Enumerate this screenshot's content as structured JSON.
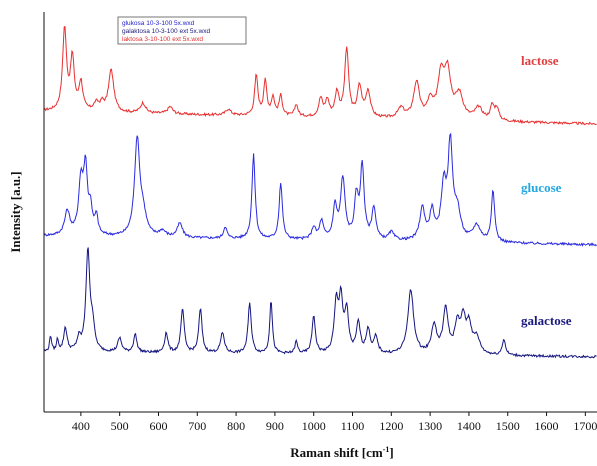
{
  "chart_data": {
    "type": "line",
    "xlabel": "Raman shift [cm",
    "xlabel_sup": "-1",
    "xlabel_close": "]",
    "ylabel": "Intensity [a.u.]",
    "xlim": [
      305,
      1730
    ],
    "ylim": [
      0,
      1
    ],
    "grid": false,
    "legend_position": "top-left",
    "x_ticks": [
      400,
      500,
      600,
      700,
      800,
      900,
      1000,
      1100,
      1200,
      1300,
      1400,
      1500,
      1600,
      1700
    ],
    "legend": [
      {
        "text": "glukosa 10-3-100 5x.wxd",
        "color": "#2222cc"
      },
      {
        "text": "galaktosa 10-3-100 ext 5x.wxd",
        "color": "#1a1a7a"
      },
      {
        "text": "laktosa 3-10-100 ext 5x.wxd",
        "color": "#e03030"
      }
    ],
    "series": [
      {
        "name": "lactose",
        "label_color": "#e04040",
        "color": "#e83030",
        "baseline": 0.752,
        "baseline_end": 0.72,
        "peaks": [
          [
            358,
            0.205,
            6
          ],
          [
            378,
            0.13,
            6
          ],
          [
            400,
            0.07,
            6
          ],
          [
            440,
            0.02,
            8
          ],
          [
            455,
            0.018,
            6
          ],
          [
            478,
            0.105,
            8
          ],
          [
            560,
            0.025,
            8
          ],
          [
            630,
            0.018,
            8
          ],
          [
            780,
            0.015,
            8
          ],
          [
            852,
            0.1,
            5
          ],
          [
            875,
            0.085,
            5
          ],
          [
            895,
            0.045,
            5
          ],
          [
            915,
            0.05,
            5
          ],
          [
            955,
            0.03,
            5
          ],
          [
            1018,
            0.045,
            6
          ],
          [
            1035,
            0.04,
            6
          ],
          [
            1060,
            0.06,
            6
          ],
          [
            1085,
            0.17,
            6
          ],
          [
            1118,
            0.075,
            7
          ],
          [
            1140,
            0.065,
            7
          ],
          [
            1225,
            0.025,
            10
          ],
          [
            1265,
            0.09,
            9
          ],
          [
            1300,
            0.04,
            9
          ],
          [
            1328,
            0.105,
            10
          ],
          [
            1345,
            0.11,
            10
          ],
          [
            1375,
            0.06,
            12
          ],
          [
            1425,
            0.03,
            12
          ],
          [
            1460,
            0.035,
            6
          ],
          [
            1472,
            0.03,
            6
          ]
        ]
      },
      {
        "name": "glucose",
        "label_color": "#25a8e0",
        "color": "#2a2ae0",
        "baseline": 0.44,
        "baseline_end": 0.418,
        "peaks": [
          [
            365,
            0.06,
            8
          ],
          [
            400,
            0.13,
            7
          ],
          [
            412,
            0.16,
            6
          ],
          [
            425,
            0.06,
            5
          ],
          [
            440,
            0.045,
            5
          ],
          [
            545,
            0.24,
            8
          ],
          [
            560,
            0.05,
            10
          ],
          [
            610,
            0.015,
            10
          ],
          [
            655,
            0.035,
            8
          ],
          [
            772,
            0.03,
            5
          ],
          [
            845,
            0.21,
            5
          ],
          [
            915,
            0.14,
            5
          ],
          [
            1000,
            0.03,
            6
          ],
          [
            1020,
            0.045,
            6
          ],
          [
            1055,
            0.08,
            6
          ],
          [
            1075,
            0.15,
            7
          ],
          [
            1110,
            0.1,
            6
          ],
          [
            1125,
            0.18,
            6
          ],
          [
            1155,
            0.08,
            6
          ],
          [
            1200,
            0.02,
            8
          ],
          [
            1280,
            0.08,
            8
          ],
          [
            1305,
            0.07,
            7
          ],
          [
            1335,
            0.13,
            8
          ],
          [
            1352,
            0.23,
            7
          ],
          [
            1370,
            0.07,
            10
          ],
          [
            1420,
            0.04,
            12
          ],
          [
            1462,
            0.13,
            5
          ]
        ]
      },
      {
        "name": "galactose",
        "label_color": "#1a1a80",
        "color": "#151580",
        "baseline": 0.15,
        "baseline_end": 0.138,
        "peaks": [
          [
            322,
            0.04,
            3
          ],
          [
            340,
            0.03,
            3
          ],
          [
            360,
            0.06,
            5
          ],
          [
            395,
            0.03,
            6
          ],
          [
            418,
            0.25,
            6
          ],
          [
            430,
            0.06,
            6
          ],
          [
            500,
            0.035,
            6
          ],
          [
            540,
            0.045,
            5
          ],
          [
            620,
            0.05,
            5
          ],
          [
            662,
            0.11,
            5
          ],
          [
            708,
            0.11,
            5
          ],
          [
            765,
            0.05,
            6
          ],
          [
            835,
            0.125,
            5
          ],
          [
            890,
            0.135,
            4
          ],
          [
            955,
            0.03,
            4
          ],
          [
            1000,
            0.095,
            5
          ],
          [
            1058,
            0.12,
            6
          ],
          [
            1070,
            0.13,
            6
          ],
          [
            1085,
            0.1,
            6
          ],
          [
            1115,
            0.075,
            6
          ],
          [
            1140,
            0.06,
            6
          ],
          [
            1160,
            0.04,
            6
          ],
          [
            1250,
            0.16,
            9
          ],
          [
            1310,
            0.07,
            8
          ],
          [
            1340,
            0.11,
            8
          ],
          [
            1370,
            0.07,
            8
          ],
          [
            1385,
            0.08,
            7
          ],
          [
            1400,
            0.07,
            8
          ],
          [
            1420,
            0.04,
            10
          ],
          [
            1490,
            0.04,
            5
          ]
        ]
      }
    ]
  }
}
